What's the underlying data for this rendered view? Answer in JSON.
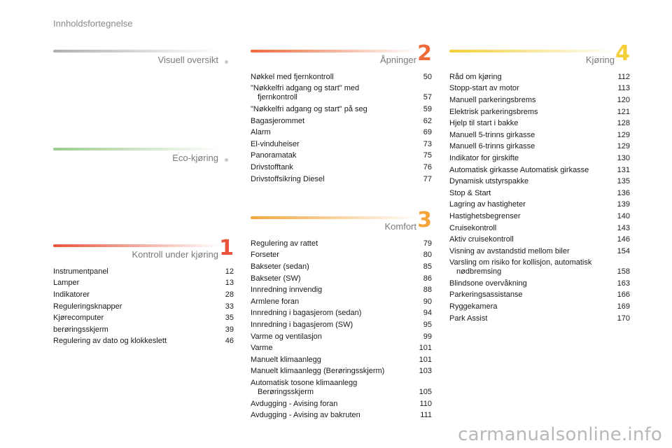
{
  "header": "Innholdsfortegnelse",
  "watermark": "carmanualsonline.info",
  "sections": {
    "visuell": {
      "title": "Visuell oversikt",
      "number": "",
      "bar_color": "#b0b0b0",
      "items": []
    },
    "eco": {
      "title": "Eco-kjøring",
      "number": "",
      "bar_color": "#9ccc8c",
      "items": []
    },
    "kontroll": {
      "title": "Kontroll under kjøring",
      "number": "1",
      "bar_color": "#e8553c",
      "items": [
        {
          "label": "Instrumentpanel",
          "page": "12"
        },
        {
          "label": "Lamper",
          "page": "13"
        },
        {
          "label": "Indikatorer",
          "page": "28"
        },
        {
          "label": "Reguleringsknapper",
          "page": "33"
        },
        {
          "label": "Kjørecomputer",
          "page": "35"
        },
        {
          "label": "berøringsskjerm",
          "page": "39"
        },
        {
          "label": "Regulering av dato og klokkeslett",
          "page": "46"
        }
      ]
    },
    "apninger": {
      "title": "Åpninger",
      "number": "2",
      "bar_color": "#ef6a3a",
      "items": [
        {
          "label": "Nøkkel med fjernkontroll",
          "page": "50"
        },
        {
          "label": "\"Nøkkelfri adgang og start\" med",
          "label2": "fjernkontroll",
          "page": "57"
        },
        {
          "label": "\"Nøkkelfri adgang og start\" på seg",
          "page": "59"
        },
        {
          "label": "Bagasjerommet",
          "page": "62"
        },
        {
          "label": "Alarm",
          "page": "69"
        },
        {
          "label": "El-vinduheiser",
          "page": "73"
        },
        {
          "label": "Panoramatak",
          "page": "75"
        },
        {
          "label": "Drivstofftank",
          "page": "76"
        },
        {
          "label": "Drivstoffsikring Diesel",
          "page": "77"
        }
      ]
    },
    "komfort": {
      "title": "Komfort",
      "number": "3",
      "bar_color": "#f5a43a",
      "items": [
        {
          "label": "Regulering av rattet",
          "page": "79"
        },
        {
          "label": "Forseter",
          "page": "80"
        },
        {
          "label": "Bakseter (sedan)",
          "page": "85"
        },
        {
          "label": "Bakseter (SW)",
          "page": "86"
        },
        {
          "label": "Innredning innvendig",
          "page": "88"
        },
        {
          "label": "Armlene foran",
          "page": "90"
        },
        {
          "label": "Innredning i bagasjerom (sedan)",
          "page": "94"
        },
        {
          "label": "Innredning i bagasjerom (SW)",
          "page": "95"
        },
        {
          "label": "Varme og ventilasjon",
          "page": "99"
        },
        {
          "label": "Varme",
          "page": "101"
        },
        {
          "label": "Manuelt klimaanlegg",
          "page": "101"
        },
        {
          "label": "Manuelt klimaanlegg (Berøringsskjerm)",
          "page": "103"
        },
        {
          "label": "Automatisk tosone klimaanlegg",
          "label2": "Berøringsskjerm",
          "page": "105"
        },
        {
          "label": "Avdugging - Avising foran",
          "page": "110"
        },
        {
          "label": "Avdugging - Avising av bakruten",
          "page": "111"
        }
      ]
    },
    "kjoring": {
      "title": "Kjøring",
      "number": "4",
      "bar_color": "#f3cf3a",
      "items": [
        {
          "label": "Råd om kjøring",
          "page": "112"
        },
        {
          "label": "Stopp-start av motor",
          "page": "113"
        },
        {
          "label": "Manuell parkeringsbrems",
          "page": "120"
        },
        {
          "label": "Elektrisk parkeringsbrems",
          "page": "121"
        },
        {
          "label": "Hjelp til start i bakke",
          "page": "128"
        },
        {
          "label": "Manuell 5-trinns girkasse",
          "page": "129"
        },
        {
          "label": "Manuell 6-trinns girkasse",
          "page": "129"
        },
        {
          "label": "Indikator for girskifte",
          "page": "130"
        },
        {
          "label": "Automatisk girkasse Automatisk girkasse",
          "page": "131"
        },
        {
          "label": "Dynamisk utstyrspakke",
          "page": "135"
        },
        {
          "label": "Stop & Start",
          "page": "136"
        },
        {
          "label": "Lagring av hastigheter",
          "page": "139"
        },
        {
          "label": "Hastighetsbegrenser",
          "page": "140"
        },
        {
          "label": "Cruisekontroll",
          "page": "143"
        },
        {
          "label": "Aktiv cruisekontroll",
          "page": "146"
        },
        {
          "label": "Visning av avstandstid mellom biler",
          "page": "154"
        },
        {
          "label": "Varsling om risiko for kollisjon, automatisk",
          "label2": "nødbremsing",
          "page": "158"
        },
        {
          "label": "Blindsone overvåkning",
          "page": "163"
        },
        {
          "label": "Parkeringsassistanse",
          "page": "166"
        },
        {
          "label": "Ryggekamera",
          "page": "169"
        },
        {
          "label": "Park Assist",
          "page": "170"
        }
      ]
    }
  }
}
